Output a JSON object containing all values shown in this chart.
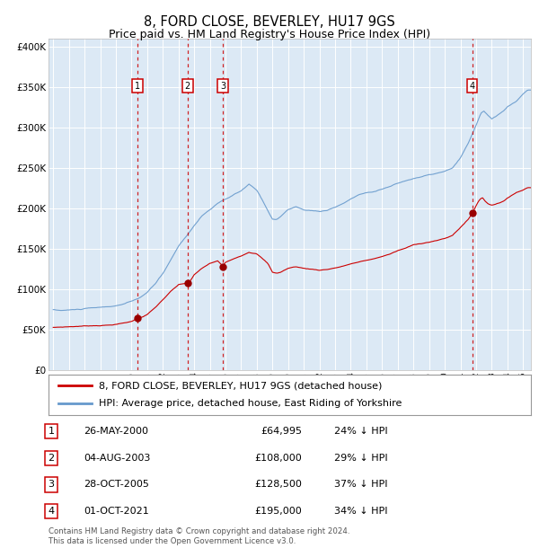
{
  "title": "8, FORD CLOSE, BEVERLEY, HU17 9GS",
  "subtitle": "Price paid vs. HM Land Registry's House Price Index (HPI)",
  "title_fontsize": 10.5,
  "subtitle_fontsize": 9,
  "background_color": "#ffffff",
  "plot_bg_color": "#dce9f5",
  "grid_color": "#c8d8e8",
  "hpi_line_color": "#6699cc",
  "price_line_color": "#cc0000",
  "sale_marker_color": "#990000",
  "dashed_line_color": "#cc0000",
  "transactions": [
    {
      "label": "1",
      "date_decimal": 2000.37,
      "price": 64995,
      "date_str": "26-MAY-2000",
      "pct": "24%"
    },
    {
      "label": "2",
      "date_decimal": 2003.58,
      "price": 108000,
      "date_str": "04-AUG-2003",
      "pct": "29%"
    },
    {
      "label": "3",
      "date_decimal": 2005.82,
      "price": 128500,
      "date_str": "28-OCT-2005",
      "pct": "37%"
    },
    {
      "label": "4",
      "date_decimal": 2021.75,
      "price": 195000,
      "date_str": "01-OCT-2021",
      "pct": "34%"
    }
  ],
  "xlim": [
    1994.7,
    2025.5
  ],
  "ylim": [
    0,
    410000
  ],
  "yticks": [
    0,
    50000,
    100000,
    150000,
    200000,
    250000,
    300000,
    350000,
    400000
  ],
  "ytick_labels": [
    "£0",
    "£50K",
    "£100K",
    "£150K",
    "£200K",
    "£250K",
    "£300K",
    "£350K",
    "£400K"
  ],
  "xticks": [
    1995,
    1996,
    1997,
    1998,
    1999,
    2000,
    2001,
    2002,
    2003,
    2004,
    2005,
    2006,
    2007,
    2008,
    2009,
    2010,
    2011,
    2012,
    2013,
    2014,
    2015,
    2016,
    2017,
    2018,
    2019,
    2020,
    2021,
    2022,
    2023,
    2024,
    2025
  ],
  "footer": "Contains HM Land Registry data © Crown copyright and database right 2024.\nThis data is licensed under the Open Government Licence v3.0.",
  "legend_line1": "8, FORD CLOSE, BEVERLEY, HU17 9GS (detached house)",
  "legend_line2": "HPI: Average price, detached house, East Riding of Yorkshire",
  "table_rows": [
    [
      "1",
      "26-MAY-2000",
      "£64,995",
      "24% ↓ HPI"
    ],
    [
      "2",
      "04-AUG-2003",
      "£108,000",
      "29% ↓ HPI"
    ],
    [
      "3",
      "28-OCT-2005",
      "£128,500",
      "37% ↓ HPI"
    ],
    [
      "4",
      "01-OCT-2021",
      "£195,000",
      "34% ↓ HPI"
    ]
  ],
  "hpi_anchors": [
    [
      1995.0,
      75000
    ],
    [
      1995.5,
      74000
    ],
    [
      1996.0,
      74500
    ],
    [
      1996.5,
      75000
    ],
    [
      1997.0,
      76000
    ],
    [
      1997.5,
      76500
    ],
    [
      1998.0,
      77000
    ],
    [
      1998.5,
      77500
    ],
    [
      1999.0,
      79000
    ],
    [
      1999.5,
      81000
    ],
    [
      2000.0,
      84000
    ],
    [
      2000.5,
      88000
    ],
    [
      2001.0,
      95000
    ],
    [
      2001.5,
      105000
    ],
    [
      2002.0,
      118000
    ],
    [
      2002.5,
      135000
    ],
    [
      2003.0,
      152000
    ],
    [
      2003.5,
      165000
    ],
    [
      2004.0,
      178000
    ],
    [
      2004.5,
      190000
    ],
    [
      2005.0,
      198000
    ],
    [
      2005.5,
      205000
    ],
    [
      2006.0,
      210000
    ],
    [
      2006.5,
      215000
    ],
    [
      2007.0,
      220000
    ],
    [
      2007.5,
      228000
    ],
    [
      2008.0,
      220000
    ],
    [
      2008.3,
      210000
    ],
    [
      2008.7,
      195000
    ],
    [
      2009.0,
      185000
    ],
    [
      2009.3,
      185000
    ],
    [
      2009.5,
      188000
    ],
    [
      2010.0,
      197000
    ],
    [
      2010.5,
      200000
    ],
    [
      2011.0,
      196000
    ],
    [
      2011.5,
      195000
    ],
    [
      2012.0,
      194000
    ],
    [
      2012.5,
      196000
    ],
    [
      2013.0,
      200000
    ],
    [
      2013.5,
      204000
    ],
    [
      2014.0,
      210000
    ],
    [
      2014.5,
      215000
    ],
    [
      2015.0,
      218000
    ],
    [
      2015.5,
      220000
    ],
    [
      2016.0,
      223000
    ],
    [
      2016.5,
      226000
    ],
    [
      2017.0,
      230000
    ],
    [
      2017.5,
      233000
    ],
    [
      2018.0,
      236000
    ],
    [
      2018.5,
      238000
    ],
    [
      2019.0,
      240000
    ],
    [
      2019.5,
      242000
    ],
    [
      2020.0,
      244000
    ],
    [
      2020.5,
      248000
    ],
    [
      2021.0,
      260000
    ],
    [
      2021.5,
      278000
    ],
    [
      2022.0,
      300000
    ],
    [
      2022.3,
      315000
    ],
    [
      2022.5,
      318000
    ],
    [
      2022.8,
      312000
    ],
    [
      2023.0,
      308000
    ],
    [
      2023.2,
      310000
    ],
    [
      2023.5,
      314000
    ],
    [
      2023.8,
      318000
    ],
    [
      2024.0,
      322000
    ],
    [
      2024.3,
      326000
    ],
    [
      2024.6,
      330000
    ],
    [
      2025.0,
      338000
    ],
    [
      2025.3,
      343000
    ]
  ],
  "prop_anchors": [
    [
      1995.0,
      53000
    ],
    [
      1995.5,
      53500
    ],
    [
      1996.0,
      54000
    ],
    [
      1996.5,
      54500
    ],
    [
      1997.0,
      55000
    ],
    [
      1997.5,
      55500
    ],
    [
      1998.0,
      56000
    ],
    [
      1998.5,
      56500
    ],
    [
      1999.0,
      57500
    ],
    [
      1999.5,
      59000
    ],
    [
      2000.0,
      61000
    ],
    [
      2000.37,
      64995
    ],
    [
      2000.7,
      67000
    ],
    [
      2001.0,
      70000
    ],
    [
      2001.5,
      78000
    ],
    [
      2002.0,
      88000
    ],
    [
      2002.5,
      98000
    ],
    [
      2003.0,
      106000
    ],
    [
      2003.58,
      108000
    ],
    [
      2003.8,
      112000
    ],
    [
      2004.0,
      118000
    ],
    [
      2004.5,
      126000
    ],
    [
      2005.0,
      132000
    ],
    [
      2005.5,
      135000
    ],
    [
      2005.82,
      128500
    ],
    [
      2006.0,
      133000
    ],
    [
      2006.5,
      138000
    ],
    [
      2007.0,
      142000
    ],
    [
      2007.5,
      147000
    ],
    [
      2008.0,
      145000
    ],
    [
      2008.3,
      140000
    ],
    [
      2008.7,
      133000
    ],
    [
      2009.0,
      122000
    ],
    [
      2009.3,
      121000
    ],
    [
      2009.5,
      122000
    ],
    [
      2010.0,
      127000
    ],
    [
      2010.5,
      129000
    ],
    [
      2011.0,
      127000
    ],
    [
      2011.5,
      126000
    ],
    [
      2012.0,
      125000
    ],
    [
      2012.5,
      126000
    ],
    [
      2013.0,
      128000
    ],
    [
      2013.5,
      130000
    ],
    [
      2014.0,
      133000
    ],
    [
      2014.5,
      135000
    ],
    [
      2015.0,
      137000
    ],
    [
      2015.5,
      139000
    ],
    [
      2016.0,
      142000
    ],
    [
      2016.5,
      145000
    ],
    [
      2017.0,
      149000
    ],
    [
      2017.5,
      152000
    ],
    [
      2018.0,
      156000
    ],
    [
      2018.5,
      158000
    ],
    [
      2019.0,
      160000
    ],
    [
      2019.5,
      162000
    ],
    [
      2020.0,
      164000
    ],
    [
      2020.5,
      168000
    ],
    [
      2021.0,
      178000
    ],
    [
      2021.5,
      188000
    ],
    [
      2021.75,
      195000
    ],
    [
      2022.0,
      205000
    ],
    [
      2022.2,
      212000
    ],
    [
      2022.4,
      215000
    ],
    [
      2022.6,
      210000
    ],
    [
      2022.8,
      207000
    ],
    [
      2023.0,
      206000
    ],
    [
      2023.2,
      207000
    ],
    [
      2023.5,
      209000
    ],
    [
      2023.8,
      212000
    ],
    [
      2024.0,
      215000
    ],
    [
      2024.3,
      218000
    ],
    [
      2024.6,
      222000
    ],
    [
      2025.0,
      225000
    ],
    [
      2025.3,
      228000
    ]
  ]
}
